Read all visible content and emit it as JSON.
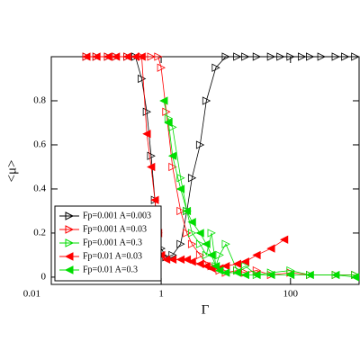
{
  "chart_data": {
    "type": "line",
    "x_label": "Γ",
    "y_label": "<μ>",
    "xscale": "log",
    "xlim": [
      0.02,
      1150
    ],
    "ylim": [
      -0.033,
      1.0
    ],
    "xticks": [
      0.01,
      1,
      100
    ],
    "yticks": [
      0,
      0.2,
      0.4,
      0.6,
      0.8
    ],
    "legend_position": "lower left",
    "series": [
      {
        "name": "Fp=0.001 A=0.003",
        "color": "#000000",
        "marker": "triangle-right",
        "filled": false,
        "x": [
          0.07,
          0.1,
          0.15,
          0.2,
          0.3,
          0.4,
          0.5,
          0.6,
          0.7,
          0.8,
          0.9,
          1,
          1.2,
          1.5,
          2,
          2.5,
          3,
          4,
          5,
          7,
          10,
          15,
          20,
          30,
          50,
          70,
          100,
          150,
          200,
          300,
          500,
          700,
          1000
        ],
        "values": [
          1,
          1,
          1,
          1,
          1,
          1,
          0.9,
          0.75,
          0.55,
          0.35,
          0.2,
          0.13,
          0.09,
          0.1,
          0.15,
          0.3,
          0.45,
          0.6,
          0.8,
          0.95,
          1,
          1,
          1,
          1,
          1,
          1,
          1,
          1,
          1,
          1,
          1,
          1,
          1
        ]
      },
      {
        "name": "Fp=0.001 A=0.03",
        "color": "#ff0000",
        "marker": "triangle-right",
        "filled": false,
        "x": [
          0.07,
          0.1,
          0.15,
          0.2,
          0.3,
          0.5,
          0.7,
          0.9,
          1,
          1.2,
          1.5,
          2,
          2.5,
          3,
          4,
          5,
          6,
          8,
          10,
          15,
          20,
          30,
          50,
          100,
          200,
          500,
          1000
        ],
        "values": [
          1,
          1,
          1,
          1,
          1,
          1,
          1,
          1,
          0.95,
          0.75,
          0.5,
          0.3,
          0.2,
          0.15,
          0.1,
          0.06,
          0.05,
          0.03,
          0.02,
          0.03,
          0.02,
          0.03,
          0.01,
          0.02,
          0.01,
          0.01,
          0.01
        ]
      },
      {
        "name": "Fp=0.001 A=0.3",
        "color": "#00dd00",
        "marker": "triangle-right",
        "filled": false,
        "x": [
          1.3,
          1.5,
          2,
          2.5,
          3,
          4,
          5,
          6,
          7,
          8,
          10,
          15,
          20,
          30,
          50,
          100,
          200,
          500,
          1000
        ],
        "values": [
          0.72,
          0.68,
          0.45,
          0.3,
          0.2,
          0.15,
          0.1,
          0.2,
          0.05,
          0.1,
          0.15,
          0.03,
          0.05,
          0.01,
          0.02,
          0.03,
          0.01,
          0.01,
          0.01
        ]
      },
      {
        "name": "Fp=0.01 A=0.03",
        "color": "#ff0000",
        "marker": "triangle-left",
        "filled": true,
        "x": [
          0.07,
          0.1,
          0.15,
          0.2,
          0.3,
          0.4,
          0.5,
          0.6,
          0.7,
          0.8,
          0.9,
          1,
          1.2,
          1.5,
          2,
          2.5,
          3,
          4,
          5,
          6,
          8,
          10,
          15,
          20,
          30,
          50,
          80
        ],
        "values": [
          1,
          1,
          1,
          1,
          1,
          1,
          1,
          0.65,
          0.5,
          0.35,
          0.2,
          0.1,
          0.08,
          0.08,
          0.08,
          0.08,
          0.07,
          0.06,
          0.05,
          0.04,
          0.04,
          0.05,
          0.06,
          0.07,
          0.1,
          0.13,
          0.17
        ]
      },
      {
        "name": "Fp=0.01 A=0.3",
        "color": "#00dd00",
        "marker": "triangle-left",
        "filled": true,
        "x": [
          1.1,
          1.3,
          1.5,
          2,
          2.5,
          3,
          4,
          5,
          6,
          7,
          8,
          10,
          15,
          20,
          30,
          50,
          100,
          200,
          500,
          1000
        ],
        "values": [
          0.8,
          0.7,
          0.55,
          0.4,
          0.3,
          0.25,
          0.2,
          0.15,
          0.1,
          0.05,
          0.03,
          0.02,
          0.02,
          0.01,
          0.01,
          0.01,
          0.01,
          0.01,
          0.01,
          0
        ]
      }
    ]
  }
}
